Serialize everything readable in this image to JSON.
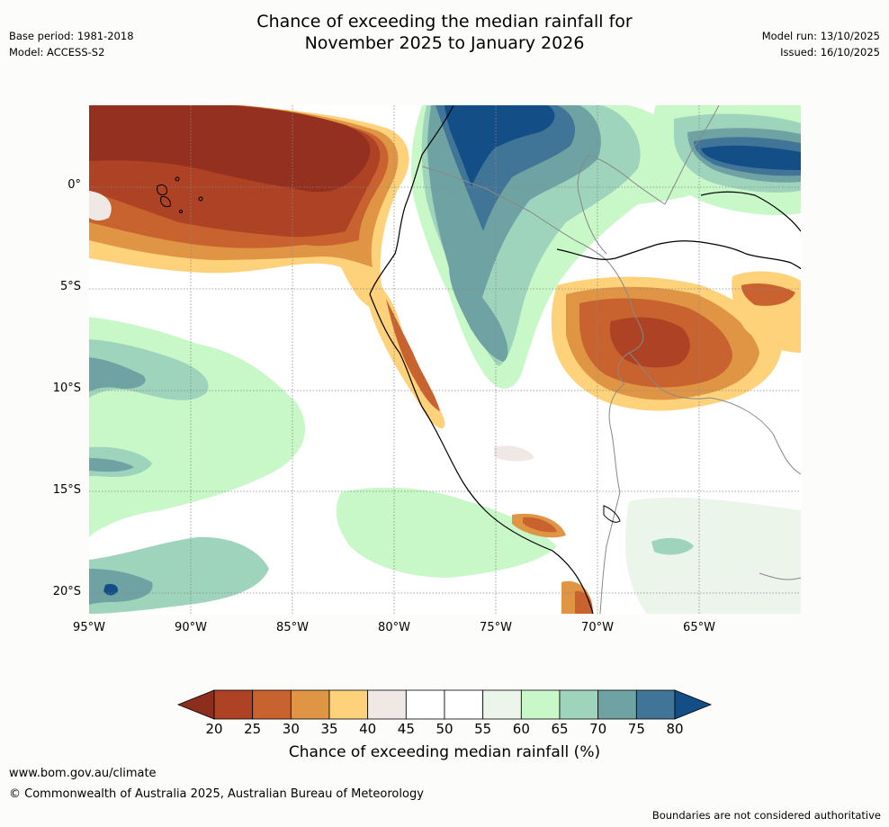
{
  "title_line1": "Chance of exceeding the median rainfall for",
  "title_line2": "November 2025 to January 2026",
  "meta_left": [
    "Base period: 1981-2018",
    "Model: ACCESS-S2"
  ],
  "meta_right": [
    "Model run: 13/10/2025",
    "Issued: 16/10/2025"
  ],
  "lat_labels": [
    "0°",
    "5°S",
    "10°S",
    "15°S",
    "20°S"
  ],
  "lon_labels": [
    "95°W",
    "90°W",
    "85°W",
    "80°W",
    "75°W",
    "70°W",
    "65°W"
  ],
  "colorbar": {
    "title": "Chance of exceeding median rainfall (%)",
    "ticks": [
      "20",
      "25",
      "30",
      "35",
      "40",
      "45",
      "50",
      "55",
      "60",
      "65",
      "70",
      "75",
      "80"
    ],
    "low_extend_color": "#8b2e1e",
    "high_extend_color": "#134f86",
    "colors": [
      "#ad4225",
      "#c8622f",
      "#e09545",
      "#fdd27a",
      "#efe8e4",
      "#ffffff",
      "#ffffff",
      "#ebf5ea",
      "#c8f7c8",
      "#9fd4bc",
      "#6fa3a3",
      "#417597"
    ]
  },
  "footer": {
    "url": "www.bom.gov.au/climate",
    "copyright": "© Commonwealth of Australia 2025, Australian Bureau of Meteorology",
    "disclaimer": "Boundaries are not considered authoritative"
  },
  "colors": {
    "dry_extreme": "#93301f",
    "dry_strong": "#ad4225",
    "dry_mod": "#c8622f",
    "dry_light": "#e09545",
    "dry_slight": "#fdd27a",
    "neutral_warm": "#efe8e4",
    "neutral_cool": "#ebf5ea",
    "wet_slight": "#c8f7c8",
    "wet_light": "#9fd4bc",
    "wet_mod": "#6fa3a3",
    "wet_strong": "#417597",
    "wet_extreme": "#134f86"
  }
}
